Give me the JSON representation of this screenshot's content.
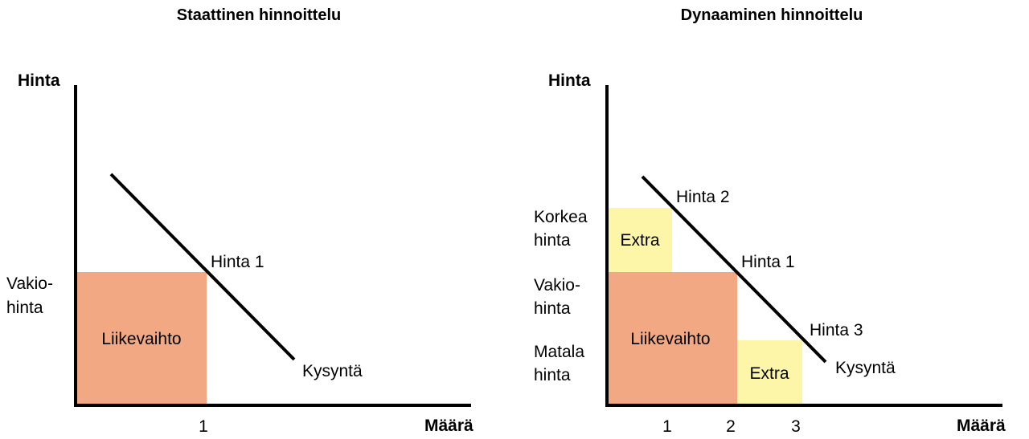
{
  "colors": {
    "revenue": "#f2a882",
    "extra": "#fdf6a9",
    "line": "#000000"
  },
  "left": {
    "title": "Staattinen hinnoittelu",
    "y_axis_label": "Hinta",
    "x_axis_label": "Määrä",
    "price_label_line1": "Vakio-",
    "price_label_line2": "hinta",
    "revenue_label": "Liikevaihto",
    "price_point_label": "Hinta 1",
    "demand_label": "Kysyntä",
    "x_tick": "1"
  },
  "right": {
    "title": "Dynaaminen hinnoittelu",
    "y_axis_label": "Hinta",
    "x_axis_label": "Määrä",
    "high_price_line1": "Korkea",
    "high_price_line2": "hinta",
    "std_price_line1": "Vakio-",
    "std_price_line2": "hinta",
    "low_price_line1": "Matala",
    "low_price_line2": "hinta",
    "extra_high_label": "Extra",
    "extra_low_label": "Extra",
    "revenue_label": "Liikevaihto",
    "price2_label": "Hinta 2",
    "price1_label": "Hinta 1",
    "price3_label": "Hinta 3",
    "demand_label": "Kysyntä",
    "x_ticks": [
      "1",
      "2",
      "3"
    ]
  }
}
